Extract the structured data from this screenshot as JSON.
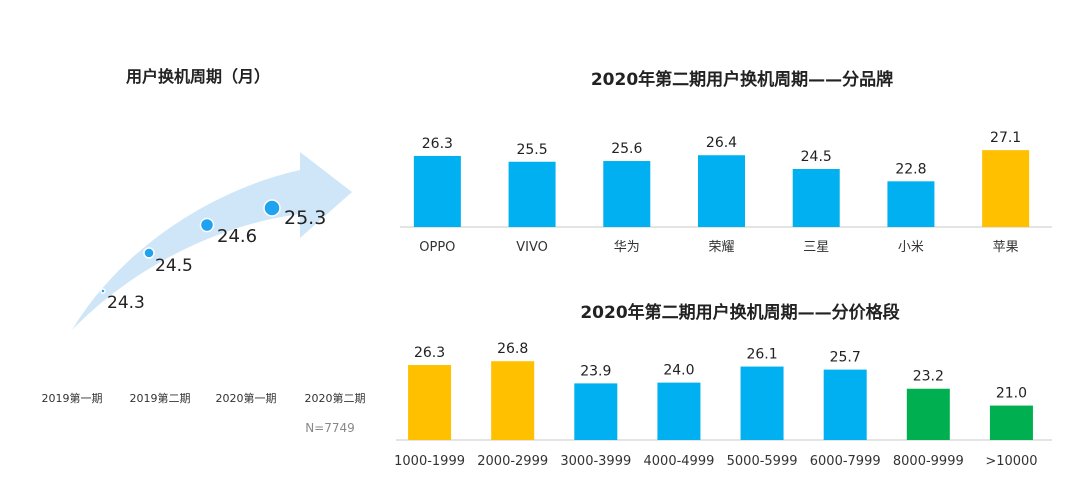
{
  "chart_data": [
    {
      "type": "line",
      "title": "用户换机周期（月）",
      "categories": [
        "2019第一期",
        "2019第二期",
        "2020第一期",
        "2020第二期"
      ],
      "values": [
        24.3,
        24.5,
        24.6,
        25.3
      ],
      "note": "N=7749",
      "colors": {
        "arrow": "#cfe6f8",
        "dot": "#1fa2f0"
      }
    },
    {
      "type": "bar",
      "title": "2020年第二期用户换机周期——分品牌",
      "categories": [
        "OPPO",
        "VIVO",
        "华为",
        "荣耀",
        "三星",
        "小米",
        "苹果"
      ],
      "values": [
        26.3,
        25.5,
        25.6,
        26.4,
        24.5,
        22.8,
        27.1
      ],
      "bar_colors": [
        "#00b0f0",
        "#00b0f0",
        "#00b0f0",
        "#00b0f0",
        "#00b0f0",
        "#00b0f0",
        "#ffc000"
      ]
    },
    {
      "type": "bar",
      "title": "2020年第二期用户换机周期——分价格段",
      "categories": [
        "1000-1999",
        "2000-2999",
        "3000-3999",
        "4000-4999",
        "5000-5999",
        "6000-7999",
        "8000-9999",
        ">10000"
      ],
      "values": [
        26.3,
        26.8,
        23.9,
        24.0,
        26.1,
        25.7,
        23.2,
        21.0
      ],
      "bar_colors": [
        "#ffc000",
        "#ffc000",
        "#00b0f0",
        "#00b0f0",
        "#00b0f0",
        "#00b0f0",
        "#00b050",
        "#00b050"
      ]
    }
  ]
}
